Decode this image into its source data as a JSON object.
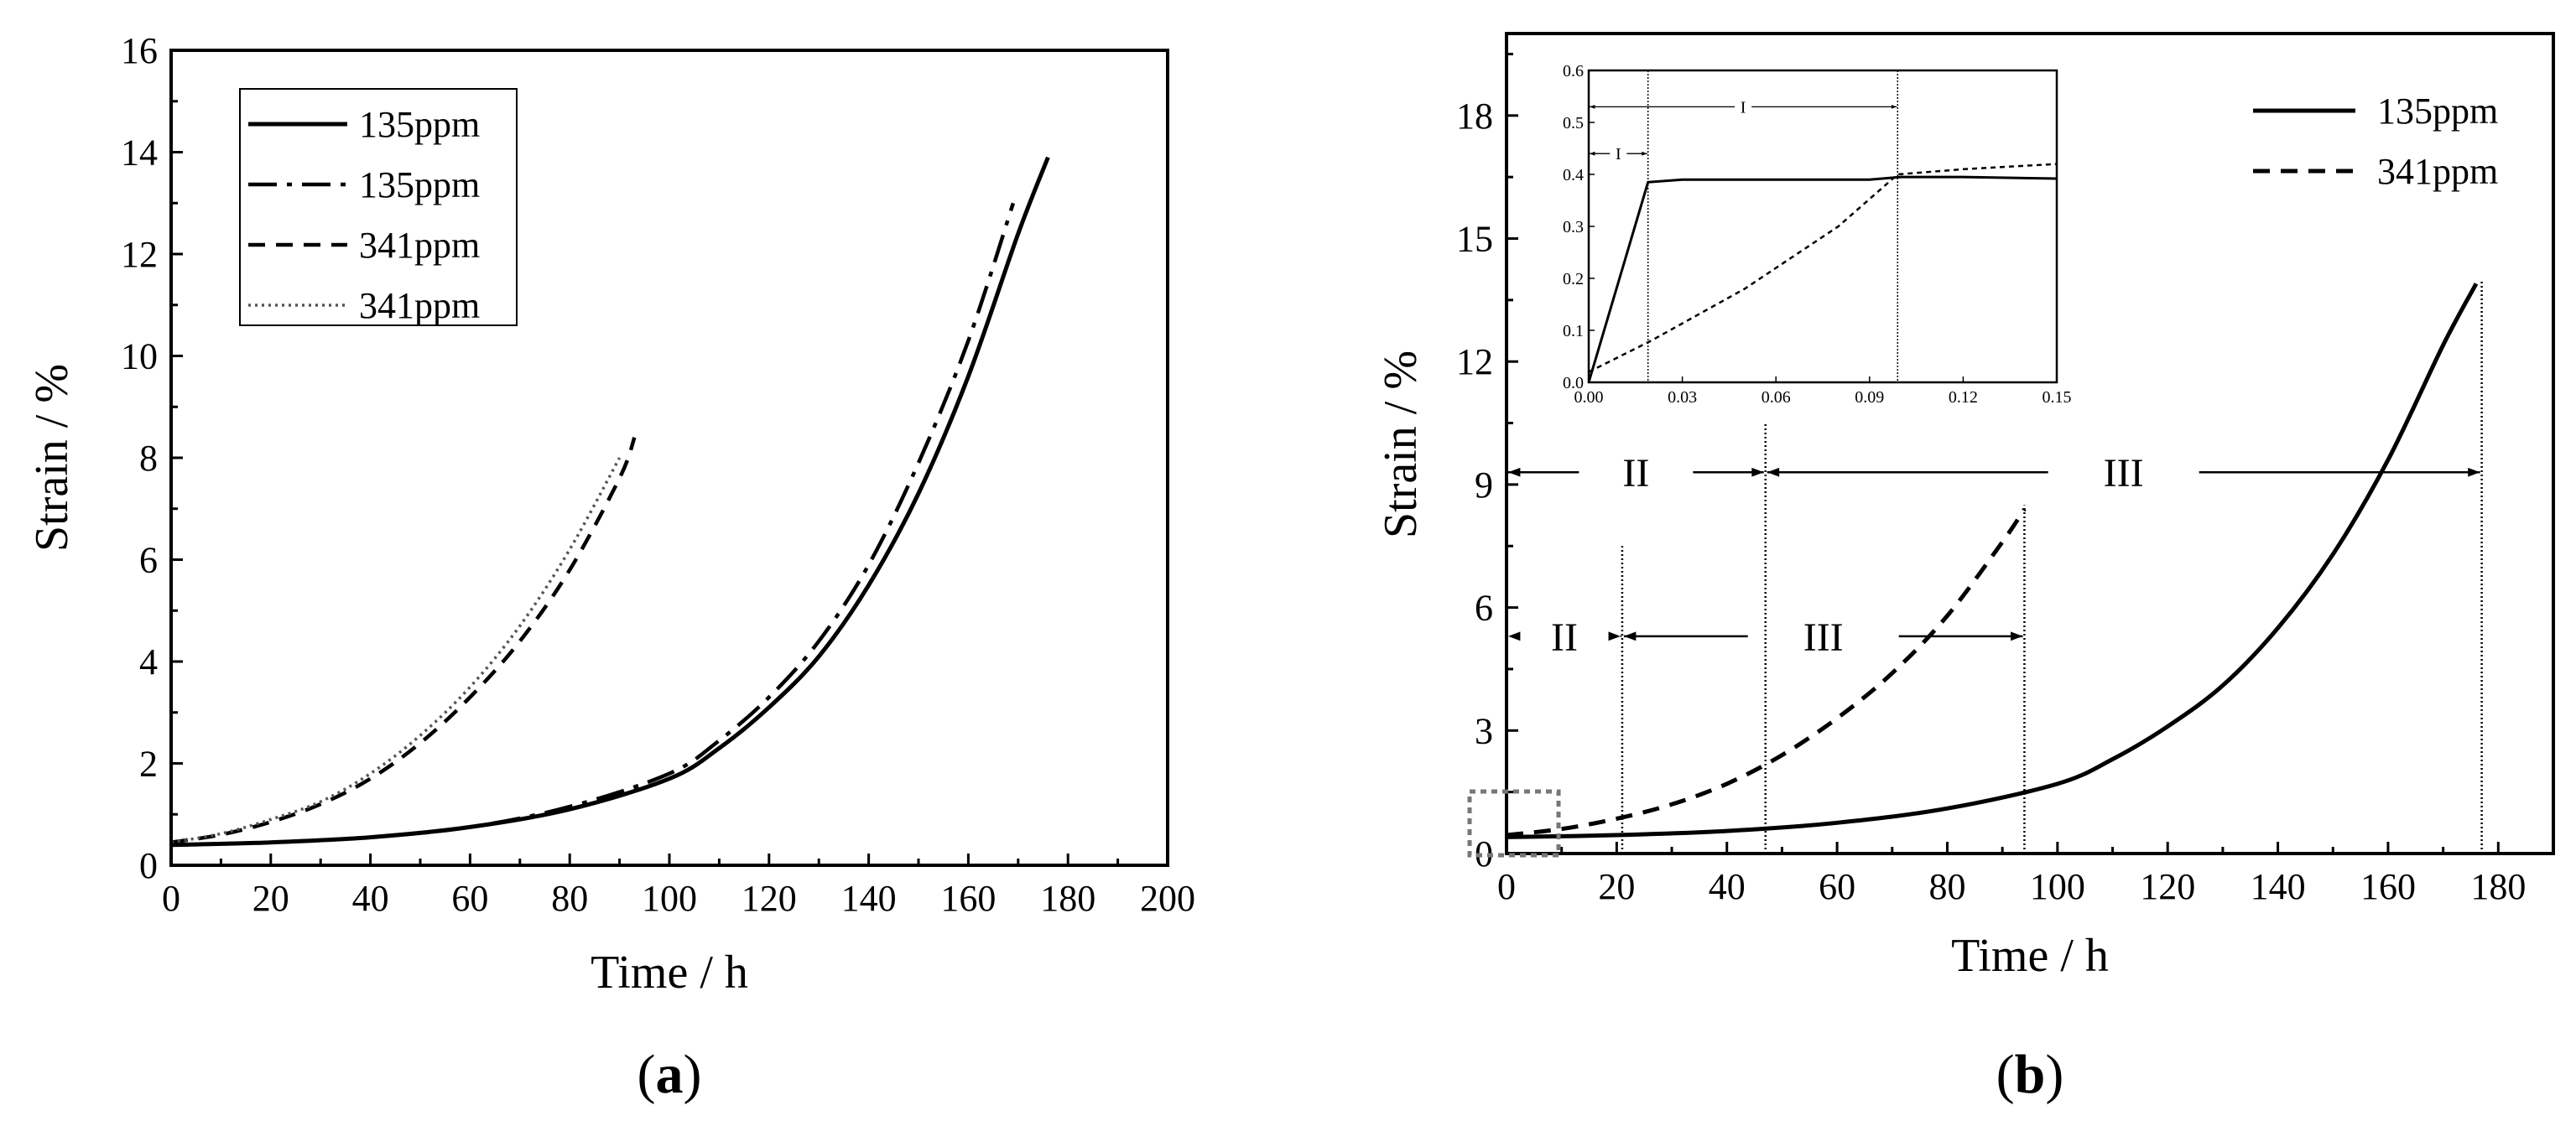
{
  "chart_data": [
    {
      "type": "line",
      "panel": "(a)",
      "panel_letter": "a",
      "xlabel": "Time / h",
      "ylabel": "Strain / %",
      "xlim": [
        0,
        200
      ],
      "ylim": [
        0,
        16
      ],
      "xticks": [
        0,
        20,
        40,
        60,
        80,
        100,
        120,
        140,
        160,
        180,
        200
      ],
      "yticks": [
        0,
        2,
        4,
        6,
        8,
        10,
        12,
        14,
        16
      ],
      "legend_position": "top-left",
      "series": [
        {
          "name": "135ppm",
          "style": "solid",
          "x": [
            0,
            20,
            40,
            60,
            80,
            100,
            110,
            120,
            130,
            140,
            150,
            160,
            170,
            176
          ],
          "y": [
            0.4,
            0.45,
            0.55,
            0.75,
            1.1,
            1.7,
            2.3,
            3.1,
            4.1,
            5.5,
            7.3,
            9.6,
            12.4,
            13.9
          ]
        },
        {
          "name": "135ppm",
          "style": "dashdot",
          "x": [
            0,
            20,
            40,
            60,
            80,
            100,
            110,
            120,
            130,
            140,
            150,
            160,
            169
          ],
          "y": [
            0.4,
            0.45,
            0.55,
            0.75,
            1.15,
            1.8,
            2.45,
            3.3,
            4.4,
            5.9,
            7.9,
            10.3,
            13.0
          ]
        },
        {
          "name": "341ppm",
          "style": "dashed",
          "x": [
            0,
            10,
            20,
            30,
            40,
            50,
            60,
            70,
            80,
            90,
            93
          ],
          "y": [
            0.45,
            0.6,
            0.85,
            1.2,
            1.7,
            2.4,
            3.3,
            4.4,
            5.8,
            7.6,
            8.4
          ]
        },
        {
          "name": "341ppm",
          "style": "dotted",
          "x": [
            0,
            10,
            20,
            30,
            40,
            50,
            60,
            70,
            80,
            90
          ],
          "y": [
            0.45,
            0.62,
            0.9,
            1.25,
            1.8,
            2.55,
            3.5,
            4.7,
            6.2,
            8.0
          ]
        }
      ]
    },
    {
      "type": "line",
      "panel": "(b)",
      "panel_letter": "b",
      "xlabel": "Time / h",
      "ylabel": "Strain / %",
      "xlim": [
        0,
        190
      ],
      "ylim": [
        0,
        20
      ],
      "xticks": [
        0,
        20,
        40,
        60,
        80,
        100,
        120,
        140,
        160,
        180
      ],
      "yticks": [
        0,
        3,
        6,
        9,
        12,
        15,
        18
      ],
      "legend_position": "top-right",
      "series": [
        {
          "name": "135ppm",
          "style": "solid",
          "x": [
            0,
            20,
            40,
            60,
            80,
            100,
            110,
            120,
            130,
            140,
            150,
            160,
            170,
            176
          ],
          "y": [
            0.4,
            0.45,
            0.55,
            0.75,
            1.1,
            1.7,
            2.3,
            3.1,
            4.1,
            5.5,
            7.3,
            9.6,
            12.4,
            13.9
          ]
        },
        {
          "name": "341ppm",
          "style": "dashed",
          "x": [
            0,
            10,
            20,
            30,
            40,
            50,
            60,
            70,
            80,
            90,
            94
          ],
          "y": [
            0.45,
            0.6,
            0.85,
            1.2,
            1.7,
            2.4,
            3.3,
            4.4,
            5.8,
            7.6,
            8.4
          ]
        }
      ],
      "regions": [
        {
          "label": "II",
          "from": 0,
          "to": 47,
          "y": 9.3
        },
        {
          "label": "III",
          "from": 47,
          "to": 177,
          "y": 9.3
        },
        {
          "label": "II",
          "from": 0,
          "to": 21,
          "y": 5.3
        },
        {
          "label": "III",
          "from": 21,
          "to": 94,
          "y": 5.3
        }
      ],
      "boundaries": [
        {
          "x": 21,
          "y_top": 7.5
        },
        {
          "x": 47,
          "y_top": 10.5
        },
        {
          "x": 94,
          "y_top": 8.5
        },
        {
          "x": 177,
          "y_top": 14.0
        }
      ],
      "inset": {
        "xlim": [
          0,
          0.15
        ],
        "ylim": [
          0,
          0.6
        ],
        "xticks": [
          "0.00",
          "0.03",
          "0.06",
          "0.09",
          "0.12",
          "0.15"
        ],
        "yticks": [
          "0.0",
          "0.1",
          "0.2",
          "0.3",
          "0.4",
          "0.5",
          "0.6"
        ],
        "series": [
          {
            "name": "135ppm",
            "style": "solid",
            "x": [
              0,
              0.019,
              0.03,
              0.06,
              0.09,
              0.1,
              0.12,
              0.15
            ],
            "y": [
              0,
              0.385,
              0.39,
              0.39,
              0.39,
              0.395,
              0.395,
              0.392
            ]
          },
          {
            "name": "341ppm",
            "style": "dashed",
            "x": [
              0,
              0.02,
              0.05,
              0.08,
              0.099,
              0.12,
              0.15
            ],
            "y": [
              0.02,
              0.08,
              0.18,
              0.3,
              0.4,
              0.41,
              0.42
            ]
          }
        ],
        "boundaries": [
          0.019,
          0.099
        ],
        "regions": [
          {
            "label": "I",
            "from": 0,
            "to": 0.019,
            "y": 0.44
          },
          {
            "label": "I",
            "from": 0,
            "to": 0.099,
            "y": 0.53
          }
        ]
      }
    }
  ]
}
